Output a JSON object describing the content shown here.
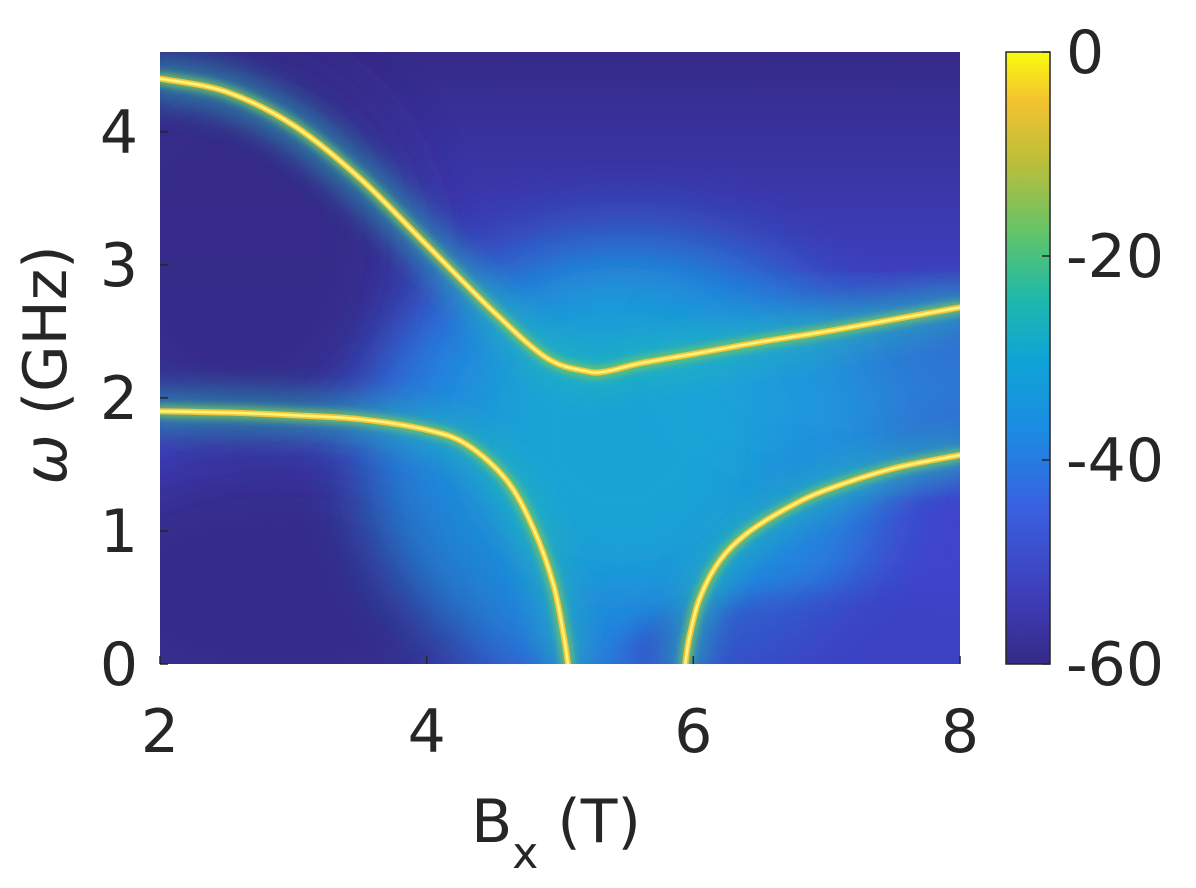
{
  "chart_data": {
    "type": "heatmap",
    "title": "",
    "xlabel": {
      "main": "B",
      "subscript": "x",
      "unit": " (T)"
    },
    "ylabel": {
      "main": "ω",
      "unit": " (GHz)"
    },
    "xlim": [
      2,
      8
    ],
    "ylim": [
      0,
      4.6
    ],
    "x_ticks": [
      2,
      4,
      6,
      8
    ],
    "x_tick_labels": [
      "2",
      "4",
      "6",
      "8"
    ],
    "y_ticks": [
      0,
      1,
      2,
      3,
      4
    ],
    "y_tick_labels": [
      "0",
      "1",
      "2",
      "3",
      "4"
    ],
    "colorbar": {
      "range": [
        -60,
        0
      ],
      "ticks": [
        0,
        -20,
        -40,
        -60
      ],
      "tick_labels": [
        "0",
        "-20",
        "-40",
        "-60"
      ],
      "colormap": "parula",
      "colors": [
        "#352a87",
        "#3e3bb4",
        "#3a5fe0",
        "#1c8be3",
        "#0ea5d5",
        "#20b9a9",
        "#5fc46b",
        "#bcbe3a",
        "#f3c32f",
        "#f9fb0e"
      ]
    },
    "series": [
      {
        "x": [
          2.0,
          2.5,
          3.0,
          3.5,
          4.0,
          4.5,
          4.9,
          5.2,
          5.35,
          5.6,
          6.0,
          6.5,
          7.0,
          7.5,
          8.0
        ],
        "y": [
          4.4,
          4.3,
          4.05,
          3.65,
          3.15,
          2.65,
          2.3,
          2.2,
          2.2,
          2.26,
          2.33,
          2.42,
          2.5,
          2.59,
          2.68
        ]
      },
      {
        "x": [
          2.0,
          2.5,
          3.0,
          3.5,
          4.0,
          4.3,
          4.6,
          4.8,
          4.95,
          5.03,
          5.06
        ],
        "y": [
          1.9,
          1.89,
          1.87,
          1.84,
          1.76,
          1.65,
          1.38,
          1.02,
          0.6,
          0.2,
          0.0
        ]
      },
      {
        "x": [
          5.94,
          5.97,
          6.05,
          6.2,
          6.4,
          6.7,
          7.0,
          7.5,
          8.0
        ],
        "y": [
          0.0,
          0.2,
          0.5,
          0.78,
          0.98,
          1.17,
          1.31,
          1.47,
          1.57
        ]
      }
    ]
  }
}
